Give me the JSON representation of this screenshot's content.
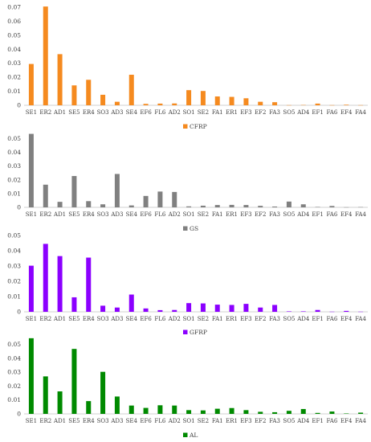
{
  "chart_data": [
    {
      "type": "bar",
      "categories": [
        "SE1",
        "ER2",
        "AD1",
        "SE5",
        "ER4",
        "SO3",
        "AD3",
        "SE4",
        "EF6",
        "FL6",
        "AD2",
        "SO1",
        "SE2",
        "FA1",
        "ER1",
        "EF3",
        "EF2",
        "FA3",
        "SO5",
        "AD4",
        "EF1",
        "FA6",
        "EF4",
        "FA4"
      ],
      "series": [
        {
          "name": "CFRP",
          "values": [
            0.0295,
            0.0705,
            0.0365,
            0.0142,
            0.0182,
            0.0075,
            0.0025,
            0.0218,
            0.001,
            0.0012,
            0.0013,
            0.0108,
            0.0102,
            0.0063,
            0.006,
            0.005,
            0.0025,
            0.0022,
            0.0001,
            0.0002,
            0.0012,
            0.0001,
            0.0004,
            0.0001
          ]
        }
      ],
      "yticks": [
        "0",
        "0.01",
        "0.02",
        "0.03",
        "0.04",
        "0.05",
        "0.06",
        "0.07"
      ],
      "ylim": [
        0,
        0.07
      ],
      "color": "#f58a1f",
      "legend": "bottom-center"
    },
    {
      "type": "bar",
      "categories": [
        "SE1",
        "ER2",
        "AD1",
        "SE5",
        "ER4",
        "SO3",
        "AD3",
        "SE4",
        "EF6",
        "FL6",
        "AD2",
        "SO1",
        "SE2",
        "FA1",
        "ER1",
        "EF3",
        "EF2",
        "FA3",
        "SO5",
        "AD4",
        "EF1",
        "FA6",
        "EF4",
        "FA4"
      ],
      "series": [
        {
          "name": "GS",
          "values": [
            0.0535,
            0.0165,
            0.004,
            0.0228,
            0.0045,
            0.0022,
            0.0243,
            0.0014,
            0.0083,
            0.0115,
            0.0112,
            0.0007,
            0.0012,
            0.0017,
            0.0018,
            0.0017,
            0.0011,
            0.0006,
            0.0042,
            0.0022,
            0.0003,
            0.001,
            0.0001,
            0.0002
          ]
        }
      ],
      "yticks": [
        "0",
        "0.01",
        "0.02",
        "0.03",
        "0.04",
        "0.05"
      ],
      "ylim": [
        0,
        0.055
      ],
      "color": "#808080",
      "legend": "bottom-center"
    },
    {
      "type": "bar",
      "categories": [
        "SE1",
        "ER2",
        "AD1",
        "SE5",
        "ER4",
        "SO3",
        "AD3",
        "SE4",
        "EF6",
        "FL6",
        "AD2",
        "SO1",
        "SE2",
        "FA1",
        "ER1",
        "EF3",
        "EF2",
        "FA3",
        "SO5",
        "AD4",
        "EF1",
        "FA6",
        "EF4",
        "FA4"
      ],
      "series": [
        {
          "name": "GFRP",
          "values": [
            0.0302,
            0.0445,
            0.0365,
            0.0095,
            0.0355,
            0.004,
            0.0028,
            0.0113,
            0.0022,
            0.0011,
            0.0012,
            0.0057,
            0.0055,
            0.0047,
            0.0045,
            0.0052,
            0.0028,
            0.0045,
            0.0003,
            0.0003,
            0.0012,
            0.0001,
            0.0006,
            0.0001
          ]
        }
      ],
      "yticks": [
        "0",
        "0.01",
        "0.02",
        "0.03",
        "0.04",
        "0.05"
      ],
      "ylim": [
        0,
        0.05
      ],
      "color": "#8b00ff",
      "legend": "bottom-center"
    },
    {
      "type": "bar",
      "categories": [
        "SE1",
        "ER2",
        "AD1",
        "SE5",
        "ER4",
        "SO3",
        "AD3",
        "SE4",
        "EF6",
        "FL6",
        "AD2",
        "SO1",
        "SE2",
        "FA1",
        "ER1",
        "EF3",
        "EF2",
        "FA3",
        "SO5",
        "AD4",
        "EF1",
        "FA6",
        "EF4",
        "FA4"
      ],
      "series": [
        {
          "name": "AL",
          "values": [
            0.0545,
            0.027,
            0.0162,
            0.0468,
            0.0092,
            0.0303,
            0.0125,
            0.006,
            0.0043,
            0.0062,
            0.006,
            0.0027,
            0.0025,
            0.0037,
            0.0042,
            0.0027,
            0.0015,
            0.0012,
            0.0022,
            0.0035,
            0.0007,
            0.0017,
            0.0003,
            0.0009
          ]
        }
      ],
      "yticks": [
        "0",
        "0.01",
        "0.02",
        "0.03",
        "0.04",
        "0.05"
      ],
      "ylim": [
        0,
        0.055
      ],
      "color": "#008a00",
      "legend": "bottom-center"
    }
  ]
}
